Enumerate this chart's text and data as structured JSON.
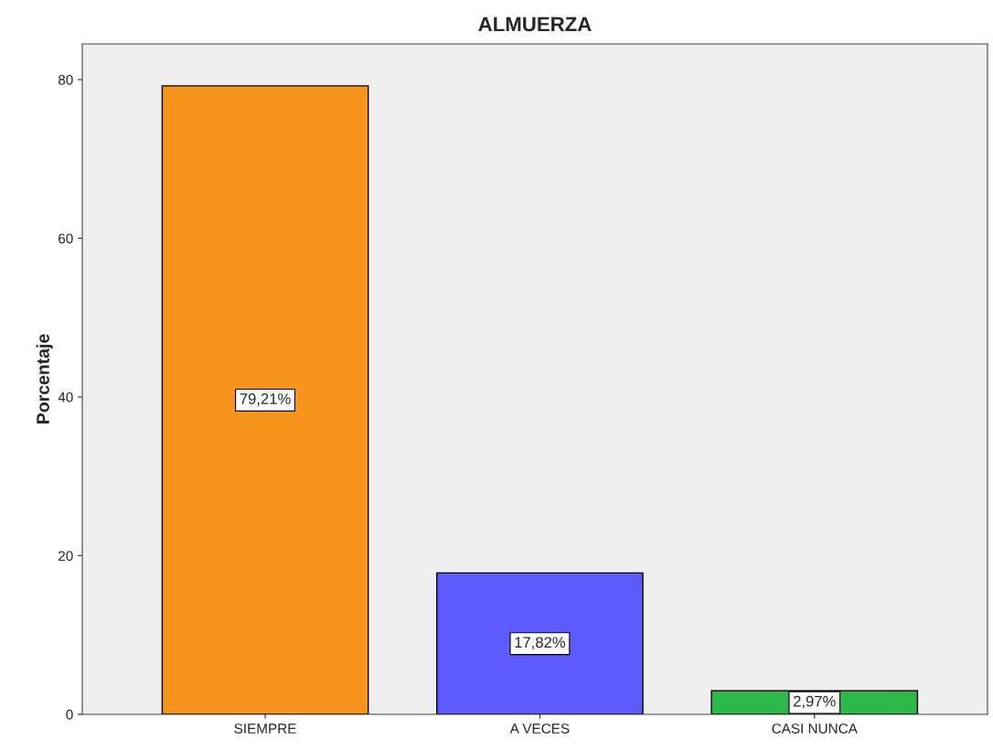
{
  "chart_data": {
    "type": "bar",
    "title": "ALMUERZA",
    "ylabel": "Porcentaje",
    "categories": [
      "SIEMPRE",
      "A VECES",
      "CASI NUNCA"
    ],
    "values": [
      79.21,
      17.82,
      2.97
    ],
    "colors": [
      "#f7941d",
      "#5b5bff",
      "#2db84a"
    ],
    "value_labels": [
      "79,21%",
      "17,82%",
      "2,97%"
    ],
    "ylim": [
      0,
      84.5
    ],
    "yticks": [
      0,
      20,
      40,
      60,
      80
    ],
    "grid": false,
    "legend": false
  }
}
